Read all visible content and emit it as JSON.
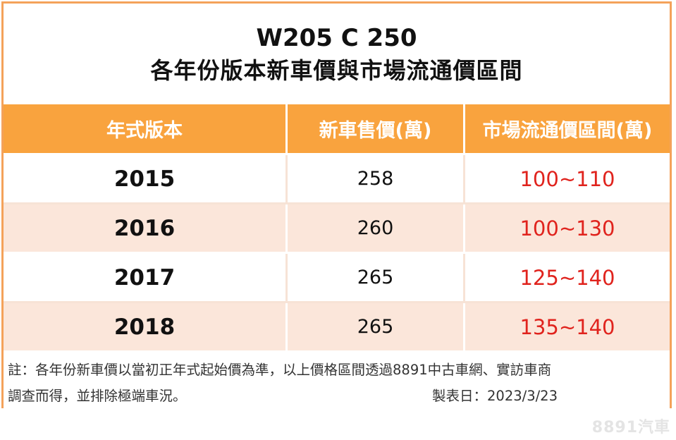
{
  "title": {
    "line1": "W205 C 250",
    "line2": "各年份版本新車價與市場流通價區間"
  },
  "table": {
    "headers": [
      "年式版本",
      "新車售價(萬)",
      "市場流通價區間(萬)"
    ],
    "rows": [
      {
        "year": "2015",
        "new_price": "258",
        "market_range": "100~110"
      },
      {
        "year": "2016",
        "new_price": "260",
        "market_range": "100~130"
      },
      {
        "year": "2017",
        "new_price": "265",
        "market_range": "125~140"
      },
      {
        "year": "2018",
        "new_price": "265",
        "market_range": "135~140"
      }
    ]
  },
  "note": {
    "line1": "註：各年份新車價以當初正年式起始價為準，以上價格區間透過8891中古車網、實訪車商",
    "line2": "調查而得，並排除極端車況。",
    "date": "製表日：2023/3/23"
  },
  "watermark": "8891汽車",
  "colors": {
    "header_bg": "#f9a33e",
    "frame": "#f4a25a",
    "even_row_bg": "#fbe6da",
    "range_text": "#e0231d"
  }
}
